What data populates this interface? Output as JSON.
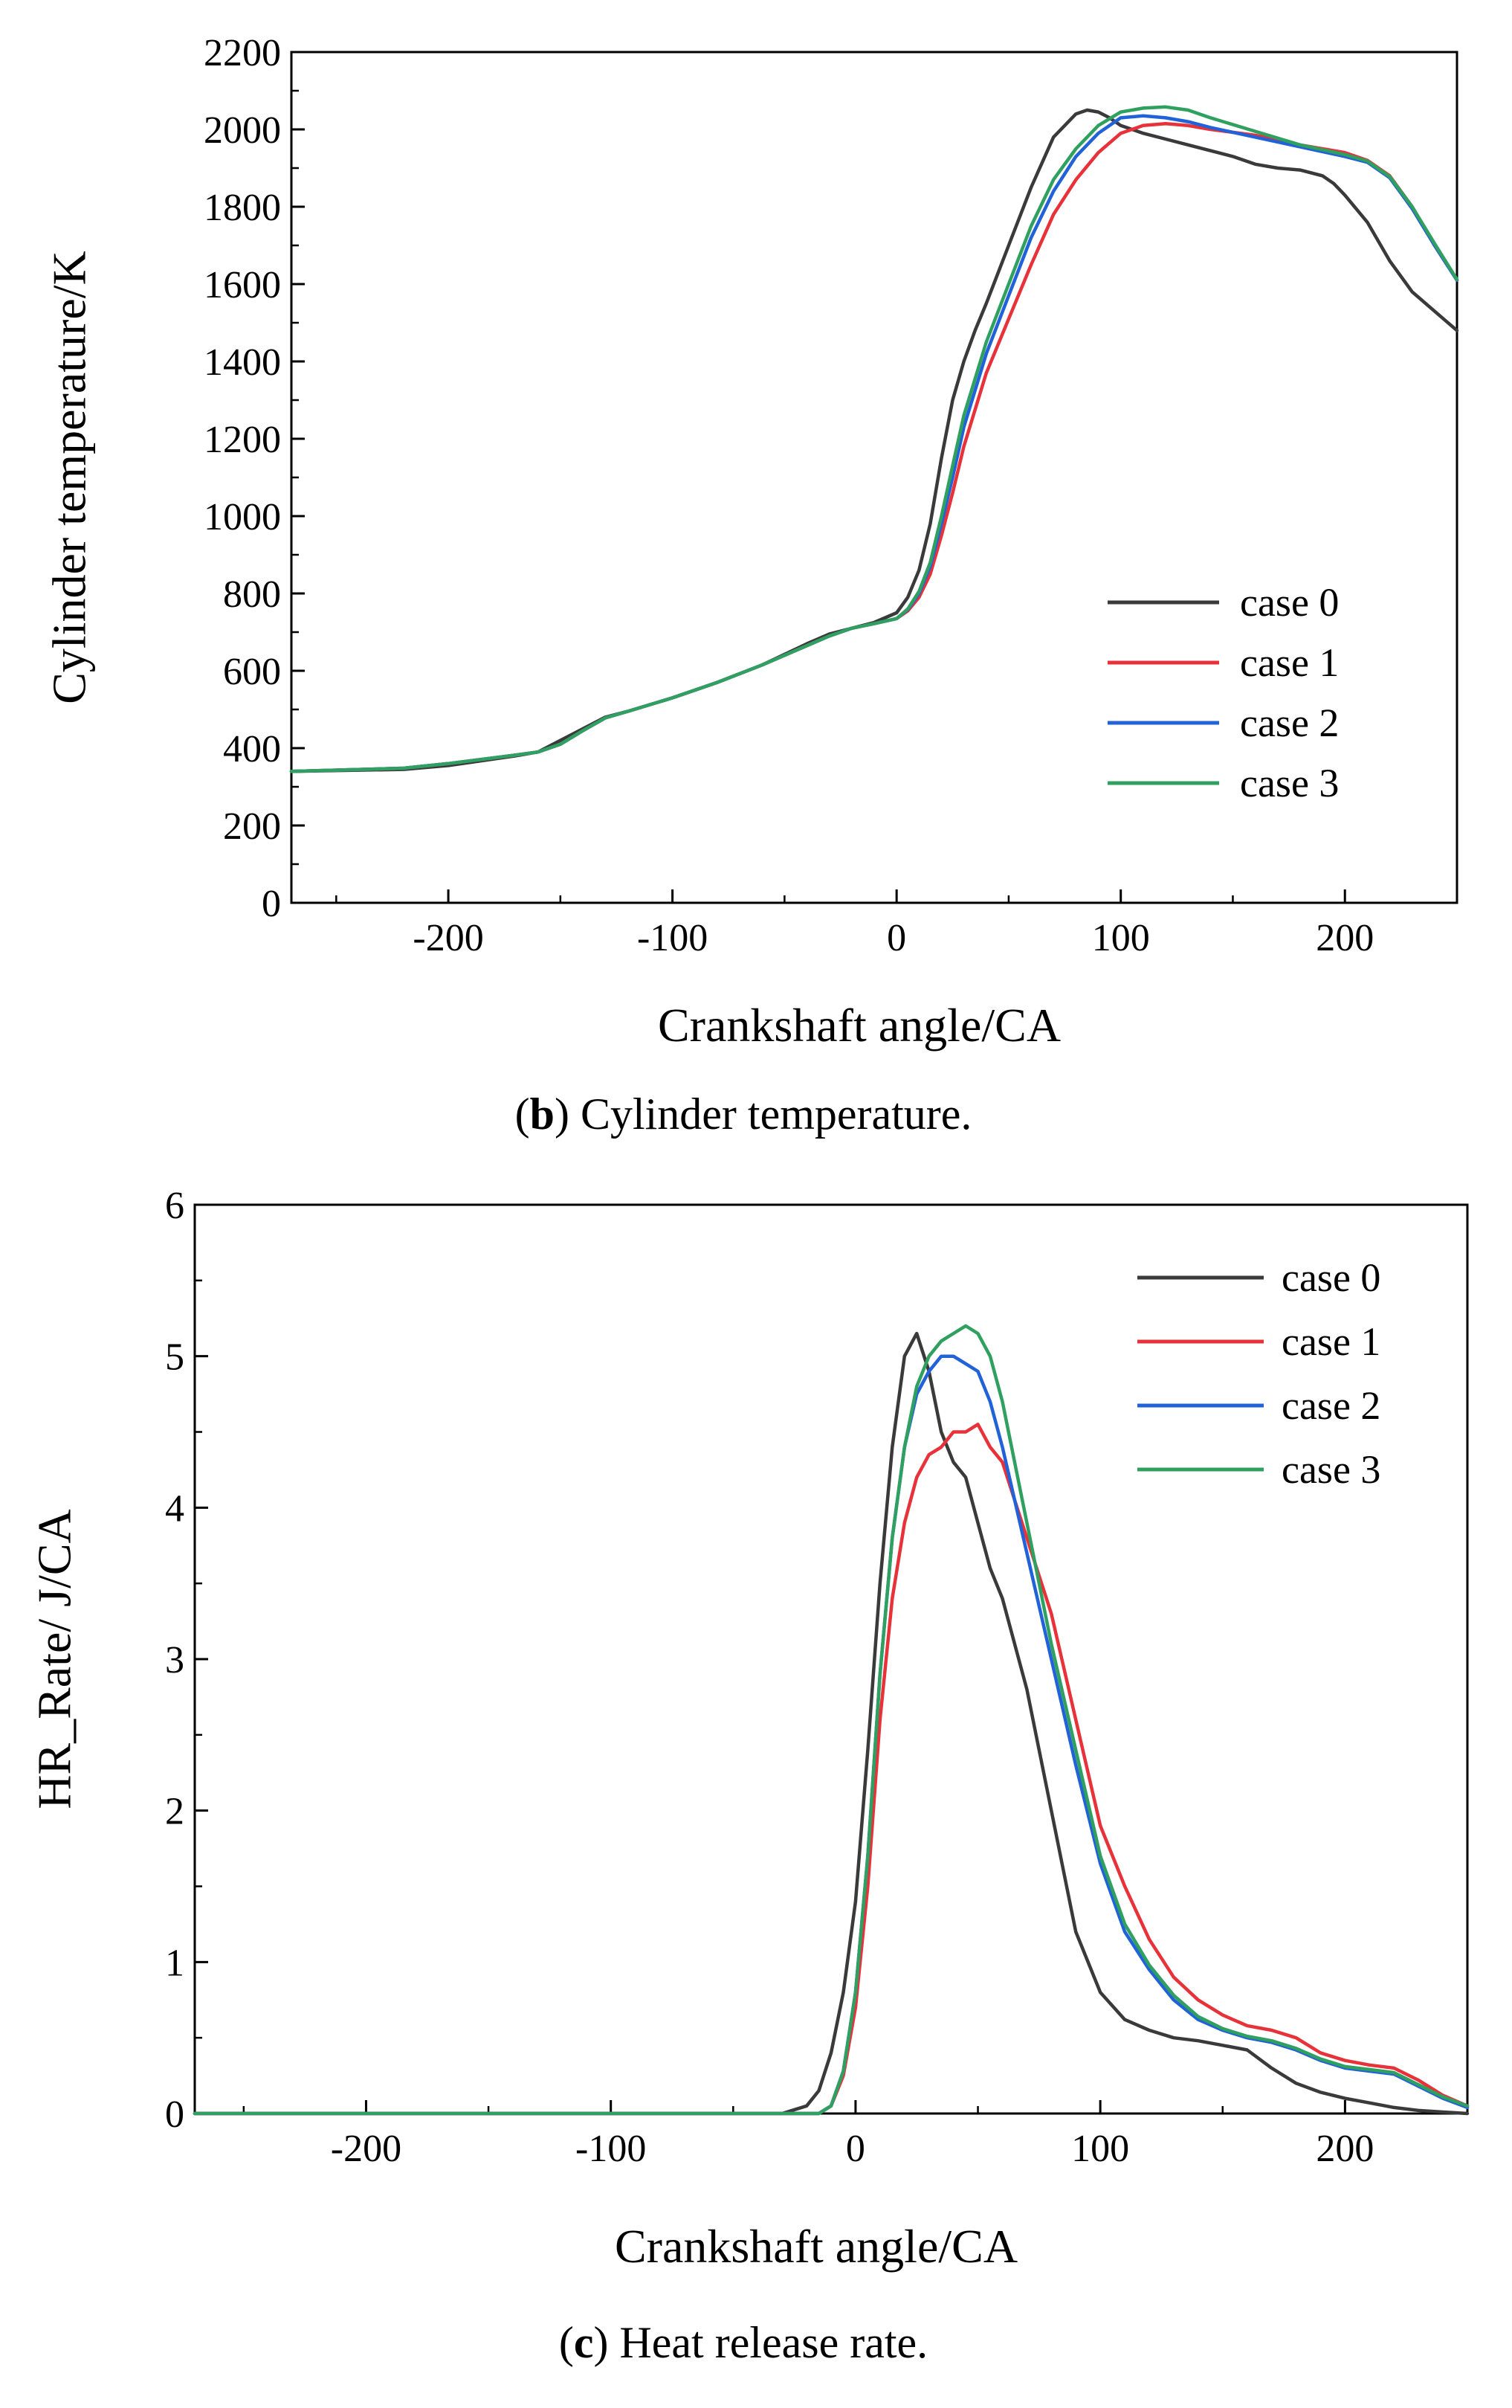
{
  "chart_data": [
    {
      "type": "line",
      "caption_letter": "b",
      "caption_text": " Cylinder temperature.",
      "xlabel": "Crankshaft angle/CA",
      "ylabel": "Cylinder temperature/K",
      "xlim": [
        -270,
        250
      ],
      "ylim": [
        0,
        2200
      ],
      "xticks": [
        -200,
        -100,
        0,
        100,
        200
      ],
      "yticks": [
        0,
        200,
        400,
        600,
        800,
        1000,
        1200,
        1400,
        1600,
        1800,
        2000,
        2200
      ],
      "legend_position": "lower-right",
      "series": [
        {
          "name": "case 0",
          "color": "#3a3a3a",
          "x": [
            -270,
            -220,
            -200,
            -170,
            -160,
            -150,
            -140,
            -130,
            -120,
            -100,
            -80,
            -60,
            -40,
            -30,
            -20,
            -10,
            0,
            5,
            10,
            15,
            20,
            25,
            30,
            35,
            40,
            50,
            60,
            70,
            80,
            85,
            90,
            95,
            100,
            110,
            120,
            130,
            140,
            150,
            160,
            170,
            180,
            190,
            195,
            200,
            210,
            220,
            230,
            240,
            250
          ],
          "y": [
            340,
            345,
            355,
            380,
            390,
            420,
            450,
            480,
            495,
            530,
            570,
            615,
            670,
            695,
            710,
            725,
            750,
            790,
            860,
            980,
            1150,
            1300,
            1400,
            1480,
            1550,
            1700,
            1850,
            1980,
            2040,
            2050,
            2045,
            2030,
            2010,
            1990,
            1975,
            1960,
            1945,
            1930,
            1910,
            1900,
            1895,
            1880,
            1860,
            1830,
            1760,
            1660,
            1580,
            1530,
            1480
          ]
        },
        {
          "name": "case 1",
          "color": "#e8323a",
          "x": [
            -270,
            -220,
            -200,
            -170,
            -160,
            -150,
            -140,
            -130,
            -120,
            -100,
            -80,
            -60,
            -40,
            -30,
            -20,
            -10,
            0,
            5,
            10,
            15,
            20,
            25,
            30,
            40,
            50,
            60,
            70,
            80,
            90,
            100,
            110,
            120,
            130,
            140,
            160,
            180,
            200,
            210,
            220,
            230,
            240,
            250
          ],
          "y": [
            340,
            348,
            360,
            382,
            390,
            410,
            445,
            478,
            495,
            530,
            570,
            615,
            665,
            690,
            710,
            722,
            735,
            755,
            790,
            850,
            950,
            1060,
            1180,
            1370,
            1510,
            1650,
            1780,
            1870,
            1940,
            1990,
            2010,
            2015,
            2010,
            2000,
            1985,
            1960,
            1940,
            1920,
            1880,
            1800,
            1700,
            1610
          ]
        },
        {
          "name": "case 2",
          "color": "#2262d8",
          "x": [
            -270,
            -220,
            -200,
            -170,
            -160,
            -150,
            -140,
            -130,
            -120,
            -100,
            -80,
            -60,
            -40,
            -30,
            -20,
            -10,
            0,
            5,
            10,
            15,
            20,
            25,
            30,
            40,
            50,
            60,
            70,
            80,
            90,
            100,
            110,
            120,
            130,
            140,
            160,
            180,
            200,
            210,
            220,
            230,
            240,
            250
          ],
          "y": [
            340,
            348,
            360,
            382,
            390,
            410,
            445,
            478,
            495,
            530,
            570,
            615,
            665,
            690,
            710,
            722,
            735,
            758,
            800,
            870,
            980,
            1100,
            1230,
            1420,
            1570,
            1720,
            1840,
            1930,
            1990,
            2030,
            2035,
            2030,
            2020,
            2005,
            1980,
            1955,
            1930,
            1915,
            1875,
            1795,
            1700,
            1610
          ]
        },
        {
          "name": "case 3",
          "color": "#30a060",
          "x": [
            -270,
            -220,
            -200,
            -170,
            -160,
            -150,
            -140,
            -130,
            -120,
            -100,
            -80,
            -60,
            -40,
            -30,
            -20,
            -10,
            0,
            5,
            10,
            15,
            20,
            25,
            30,
            40,
            50,
            60,
            70,
            80,
            90,
            100,
            110,
            120,
            130,
            140,
            160,
            180,
            200,
            210,
            220,
            230,
            240,
            250
          ],
          "y": [
            340,
            348,
            360,
            382,
            390,
            410,
            445,
            478,
            495,
            530,
            570,
            615,
            665,
            690,
            710,
            722,
            735,
            760,
            805,
            880,
            1000,
            1130,
            1260,
            1450,
            1600,
            1750,
            1870,
            1950,
            2010,
            2045,
            2055,
            2058,
            2050,
            2030,
            1995,
            1960,
            1935,
            1918,
            1878,
            1800,
            1705,
            1612
          ]
        }
      ]
    },
    {
      "type": "line",
      "caption_letter": "c",
      "caption_text": " Heat release rate.",
      "xlabel": "Crankshaft angle/CA",
      "ylabel": "HR_Rate/ J/CA",
      "xlim": [
        -270,
        250
      ],
      "ylim": [
        0,
        6
      ],
      "xticks": [
        -200,
        -100,
        0,
        100,
        200
      ],
      "yticks": [
        0,
        1,
        2,
        3,
        4,
        5,
        6
      ],
      "legend_position": "top-right",
      "series": [
        {
          "name": "case 0",
          "color": "#3a3a3a",
          "x": [
            -270,
            -30,
            -20,
            -15,
            -10,
            -5,
            0,
            5,
            10,
            15,
            20,
            25,
            30,
            35,
            40,
            45,
            50,
            55,
            60,
            70,
            80,
            90,
            100,
            110,
            120,
            130,
            140,
            150,
            160,
            170,
            180,
            190,
            200,
            210,
            220,
            230,
            240,
            250
          ],
          "y": [
            0,
            0,
            0.05,
            0.15,
            0.4,
            0.8,
            1.4,
            2.4,
            3.5,
            4.4,
            5.0,
            5.15,
            4.9,
            4.5,
            4.3,
            4.2,
            3.9,
            3.6,
            3.4,
            2.8,
            2.0,
            1.2,
            0.8,
            0.62,
            0.55,
            0.5,
            0.48,
            0.45,
            0.42,
            0.3,
            0.2,
            0.14,
            0.1,
            0.07,
            0.04,
            0.02,
            0.01,
            0
          ]
        },
        {
          "name": "case 1",
          "color": "#e8323a",
          "x": [
            -270,
            -15,
            -10,
            -5,
            0,
            5,
            10,
            15,
            20,
            25,
            30,
            35,
            40,
            45,
            50,
            55,
            60,
            70,
            80,
            90,
            100,
            110,
            120,
            130,
            140,
            150,
            160,
            170,
            180,
            190,
            200,
            210,
            220,
            230,
            240,
            250
          ],
          "y": [
            0,
            0,
            0.05,
            0.25,
            0.7,
            1.5,
            2.6,
            3.4,
            3.9,
            4.2,
            4.35,
            4.4,
            4.5,
            4.5,
            4.55,
            4.4,
            4.3,
            3.8,
            3.3,
            2.6,
            1.9,
            1.5,
            1.15,
            0.9,
            0.75,
            0.65,
            0.58,
            0.55,
            0.5,
            0.4,
            0.35,
            0.32,
            0.3,
            0.22,
            0.12,
            0.05
          ]
        },
        {
          "name": "case 2",
          "color": "#2262d8",
          "x": [
            -270,
            -15,
            -10,
            -5,
            0,
            5,
            10,
            15,
            20,
            25,
            30,
            35,
            40,
            45,
            50,
            55,
            60,
            70,
            80,
            90,
            100,
            110,
            120,
            130,
            140,
            150,
            160,
            170,
            180,
            190,
            200,
            210,
            220,
            230,
            240,
            250
          ],
          "y": [
            0,
            0,
            0.05,
            0.28,
            0.8,
            1.7,
            2.9,
            3.8,
            4.4,
            4.75,
            4.9,
            5.0,
            5.0,
            4.95,
            4.9,
            4.7,
            4.4,
            3.7,
            3.0,
            2.3,
            1.65,
            1.2,
            0.95,
            0.75,
            0.62,
            0.55,
            0.5,
            0.47,
            0.42,
            0.35,
            0.3,
            0.28,
            0.26,
            0.18,
            0.1,
            0.04
          ]
        },
        {
          "name": "case 3",
          "color": "#30a060",
          "x": [
            -270,
            -15,
            -10,
            -5,
            0,
            5,
            10,
            15,
            20,
            25,
            30,
            35,
            40,
            45,
            50,
            55,
            60,
            70,
            80,
            90,
            100,
            110,
            120,
            130,
            140,
            150,
            160,
            170,
            180,
            190,
            200,
            210,
            220,
            230,
            240,
            250
          ],
          "y": [
            0,
            0,
            0.05,
            0.28,
            0.8,
            1.7,
            2.9,
            3.8,
            4.4,
            4.8,
            5.0,
            5.1,
            5.15,
            5.2,
            5.15,
            5.0,
            4.7,
            3.9,
            3.1,
            2.4,
            1.7,
            1.25,
            0.98,
            0.78,
            0.64,
            0.56,
            0.51,
            0.48,
            0.43,
            0.36,
            0.31,
            0.29,
            0.27,
            0.19,
            0.11,
            0.05
          ]
        }
      ]
    }
  ]
}
